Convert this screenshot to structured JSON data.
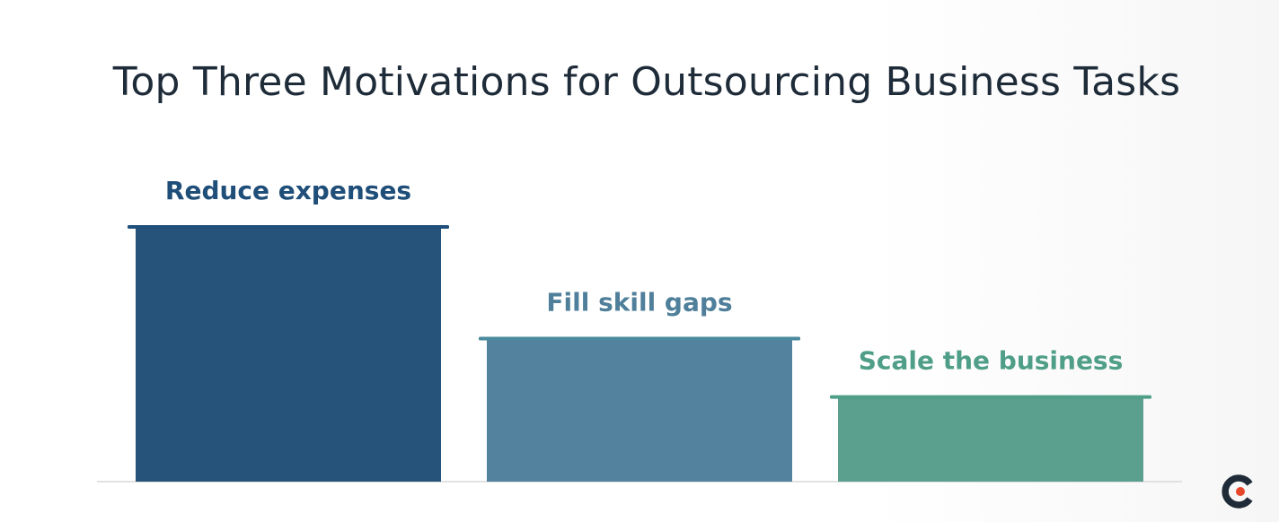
{
  "chart_data": {
    "type": "bar",
    "title": "Top Three Motivations for Outsourcing Business Tasks",
    "categories": [
      "Reduce expenses",
      "Fill skill gaps",
      "Scale the business"
    ],
    "values": [
      100,
      56,
      33
    ],
    "ylim": [
      0,
      100
    ],
    "grid": false,
    "legend": "none",
    "colors": [
      "#26537a",
      "#52829e",
      "#5b9f8e"
    ],
    "cap_colors": [
      "#1f4f7a",
      "#4a8a9c",
      "#4f9f88"
    ],
    "label_colors": [
      "#1f4e79",
      "#4f7f9a",
      "#4f9e87"
    ]
  },
  "logo": {
    "icon": "capterra-c-icon",
    "colors": [
      "#1f2b38",
      "#e8462a"
    ]
  }
}
